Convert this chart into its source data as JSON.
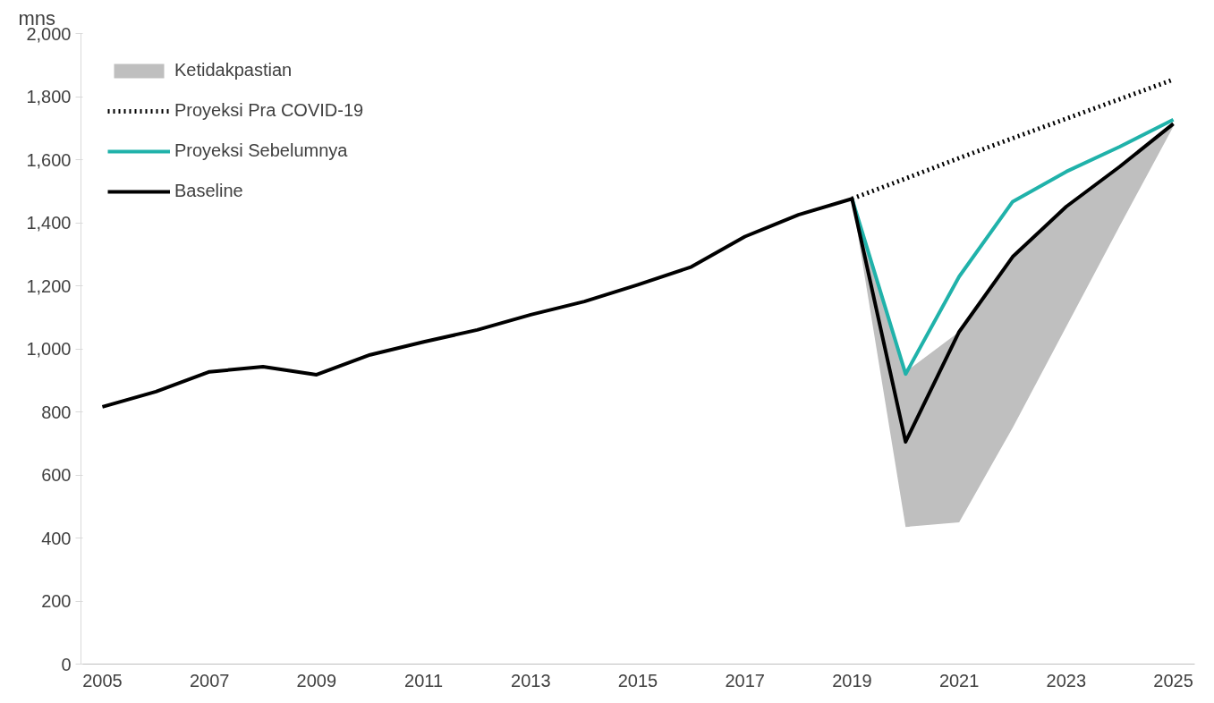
{
  "chart_data": {
    "type": "line",
    "ylabel": "mns",
    "xlim": [
      2004.6,
      2025.4
    ],
    "xticks": [
      2005,
      2007,
      2009,
      2011,
      2013,
      2015,
      2017,
      2019,
      2021,
      2023,
      2025
    ],
    "ylim": [
      0,
      2000
    ],
    "yticks": [
      0,
      {
        "value": 200,
        "label": "200"
      },
      {
        "value": 400,
        "label": "400"
      },
      {
        "value": 600,
        "label": "600"
      },
      {
        "value": 800,
        "label": "800"
      },
      {
        "value": 1000,
        "label": "1,000"
      },
      {
        "value": 1200,
        "label": "1,200"
      },
      {
        "value": 1400,
        "label": "1,400"
      },
      {
        "value": 1600,
        "label": "1,600"
      },
      {
        "value": 1800,
        "label": "1,800"
      },
      {
        "value": 2000,
        "label": "2,000"
      }
    ],
    "grid": false,
    "legend": "top left",
    "line_style": "solid",
    "marker": "none",
    "series": [
      {
        "name": "Ketidakpastian",
        "type": "area",
        "color": "#bfbfbf",
        "x": [
          2019,
          2020,
          2021,
          2022,
          2023,
          2024,
          2025
        ],
        "values": [
          null,
          null,
          null,
          null,
          null,
          null,
          null
        ],
        "lower": [
          1476,
          435,
          450,
          750,
          1070,
          1390,
          1705
        ],
        "upper": [
          1476,
          927,
          1054,
          1292,
          1451,
          1578,
          1714
        ]
      },
      {
        "name": "Proyeksi Pra COVID-19",
        "type": "line",
        "line_style": "dotted",
        "color": "#000000",
        "x": [
          2019,
          2020,
          2021,
          2022,
          2023,
          2024,
          2025
        ],
        "values": [
          1476,
          1540,
          1605,
          1668,
          1730,
          1792,
          1854
        ]
      },
      {
        "name": "Proyeksi Sebelumnya",
        "type": "line",
        "color": "#20b2aa",
        "x": [
          2019,
          2020,
          2021,
          2022,
          2023,
          2024,
          2025
        ],
        "values": [
          1476,
          920,
          1229,
          1467,
          1562,
          1641,
          1727
        ]
      },
      {
        "name": "Baseline",
        "color": "#000000",
        "x": [
          2005,
          2006,
          2007,
          2008,
          2009,
          2010,
          2011,
          2012,
          2013,
          2014,
          2015,
          2016,
          2017,
          2018,
          2019,
          2020,
          2021,
          2022,
          2023,
          2024,
          2025
        ],
        "values": [
          816,
          864,
          927,
          943,
          918,
          981,
          1022,
          1060,
          1108,
          1150,
          1203,
          1260,
          1356,
          1425,
          1476,
          705,
          1054,
          1292,
          1451,
          1578,
          1714
        ]
      }
    ]
  }
}
